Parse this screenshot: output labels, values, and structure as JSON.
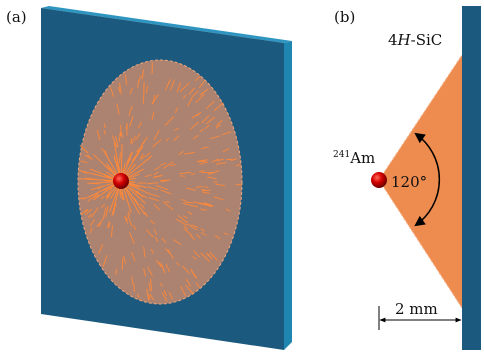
{
  "panels": {
    "a": {
      "label": "(a)"
    },
    "b": {
      "label": "(b)"
    }
  },
  "material": {
    "prefix": "4",
    "italic": "H",
    "suffix": "-SiC"
  },
  "source": {
    "mass_number": "241",
    "element": "Am"
  },
  "angle_label": "120°",
  "distance_label": "2 mm",
  "colors": {
    "slab_face": "#1b5a7e",
    "slab_side": "#1e86b0",
    "slab_top": "#2e95c0",
    "cone_fill": "#ee8c50",
    "disk_fill": "#b8866f",
    "track": "#ff8a3a",
    "source_ball": "#c00000"
  }
}
